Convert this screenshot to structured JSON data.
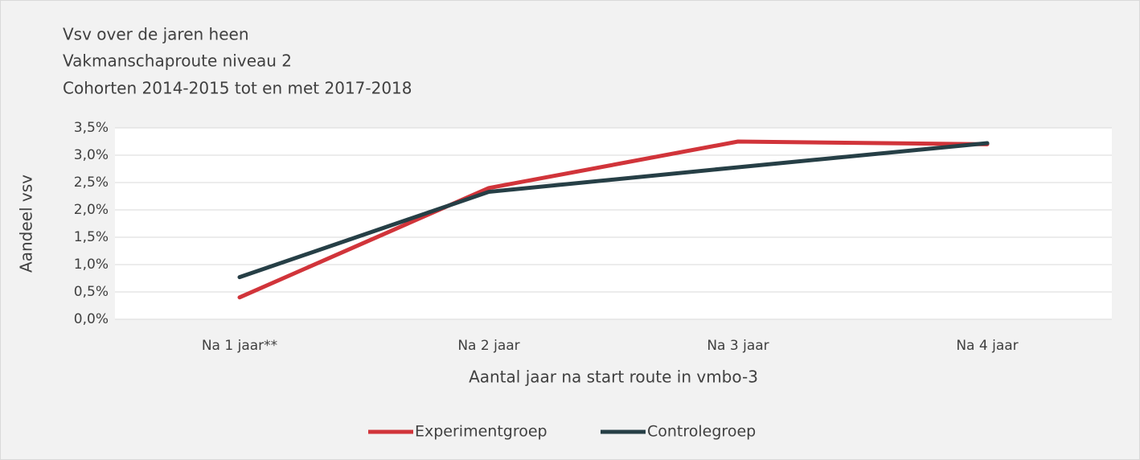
{
  "chart_data": {
    "type": "line",
    "title": [
      "Vsv over de jaren heen",
      "Vakmanschaproute niveau 2",
      "Cohorten 2014-2015 tot en met 2017-2018"
    ],
    "x_label": "Aantal jaar na start route in vmbo-3",
    "y_label": "Aandeel vsv",
    "categories": [
      "Na 1 jaar**",
      "Na 2 jaar",
      "Na 3 jaar",
      "Na 4 jaar"
    ],
    "series": [
      {
        "name": "Experimentgroep",
        "color": "#d1343a",
        "values": [
          0.4,
          2.4,
          3.25,
          3.2
        ]
      },
      {
        "name": "Controlegroep",
        "color": "#263f46",
        "values": [
          0.77,
          2.33,
          2.78,
          3.22
        ]
      }
    ],
    "ylim": [
      0,
      3.5
    ],
    "yticks": [
      {
        "value": 0,
        "label": "0,0%"
      },
      {
        "value": 0.5,
        "label": "0,5%"
      },
      {
        "value": 1,
        "label": "1,0%"
      },
      {
        "value": 1.5,
        "label": "1,5%"
      },
      {
        "value": 2,
        "label": "2,0%"
      },
      {
        "value": 2.5,
        "label": "2,5%"
      },
      {
        "value": 3,
        "label": "3,0%"
      },
      {
        "value": 3.5,
        "label": "3,5%"
      }
    ],
    "grid": true,
    "legend": "bottom"
  }
}
